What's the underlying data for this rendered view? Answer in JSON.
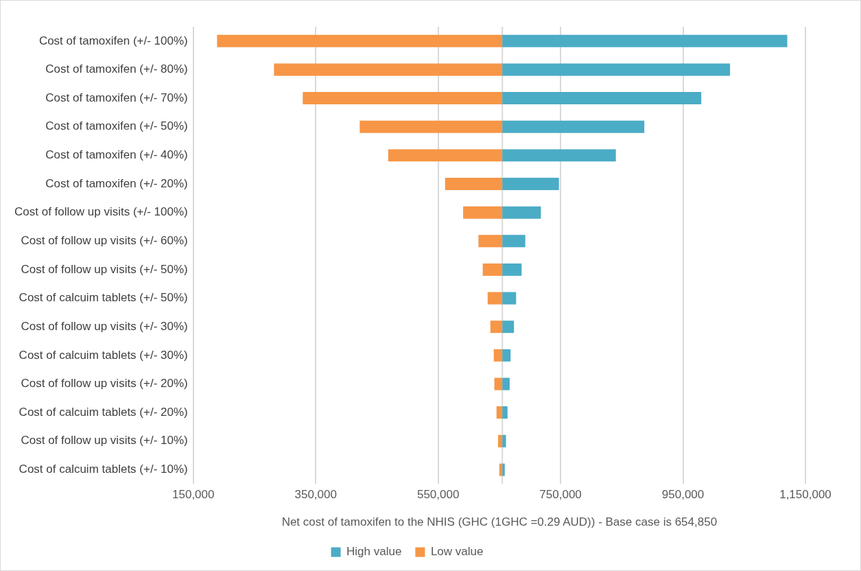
{
  "chart_data": {
    "type": "bar",
    "orientation": "horizontal",
    "categories": [
      "Cost of tamoxifen (+/- 100%)",
      "Cost of tamoxifen (+/- 80%)",
      "Cost of tamoxifen (+/- 70%)",
      "Cost of tamoxifen (+/- 50%)",
      "Cost of tamoxifen (+/- 40%)",
      "Cost of tamoxifen (+/- 20%)",
      "Cost of follow up visits (+/- 100%)",
      "Cost of follow up visits (+/- 60%)",
      "Cost of follow up visits (+/- 50%)",
      "Cost of calcuim tablets (+/- 50%)",
      "Cost of follow up visits (+/- 30%)",
      "Cost of calcuim tablets (+/- 30%)",
      "Cost of follow up visits (+/- 20%)",
      "Cost of calcuim tablets (+/- 20%)",
      "Cost of follow up visits (+/- 10%)",
      "Cost of calcuim tablets (+/- 10%)"
    ],
    "series": [
      {
        "name": "High value",
        "color": "#4bacc6",
        "base": [
          654850,
          654850,
          654850,
          654850,
          654850,
          654850,
          654850,
          654850,
          654850,
          654850,
          654850,
          654850,
          654850,
          654850,
          654850,
          654850
        ],
        "values": [
          465500,
          372000,
          325000,
          232000,
          185500,
          92500,
          63000,
          37500,
          31500,
          22500,
          19000,
          13500,
          12000,
          8500,
          6000,
          4000
        ]
      },
      {
        "name": "Low value",
        "color": "#f79646",
        "base": [
          654850,
          654850,
          654850,
          654850,
          654850,
          654850,
          654850,
          654850,
          654850,
          654850,
          654850,
          654850,
          654850,
          654850,
          654850,
          654850
        ],
        "values": [
          -466000,
          -373000,
          -326000,
          -233000,
          -186500,
          -93500,
          -64000,
          -39000,
          -32000,
          -24000,
          -19500,
          -14000,
          -13000,
          -9500,
          -7000,
          -5000
        ]
      }
    ],
    "xlabel": "Net cost of tamoxifen to the NHIS (GHC (1GHC =0.29 AUD)) - Base case is 654,850",
    "xlim": [
      150000,
      1150000
    ],
    "xticks": [
      {
        "value": 150000,
        "label": "150,000"
      },
      {
        "value": 350000,
        "label": "350,000"
      },
      {
        "value": 550000,
        "label": "550,000"
      },
      {
        "value": 750000,
        "label": "750,000"
      },
      {
        "value": 950000,
        "label": "950,000"
      },
      {
        "value": 1150000,
        "label": "1,150,000"
      }
    ],
    "ref_lines": [
      {
        "axis": "x",
        "value": 654850,
        "label": null,
        "color": "#d9d9d9"
      }
    ],
    "grid": "x",
    "legend": "bottom"
  }
}
